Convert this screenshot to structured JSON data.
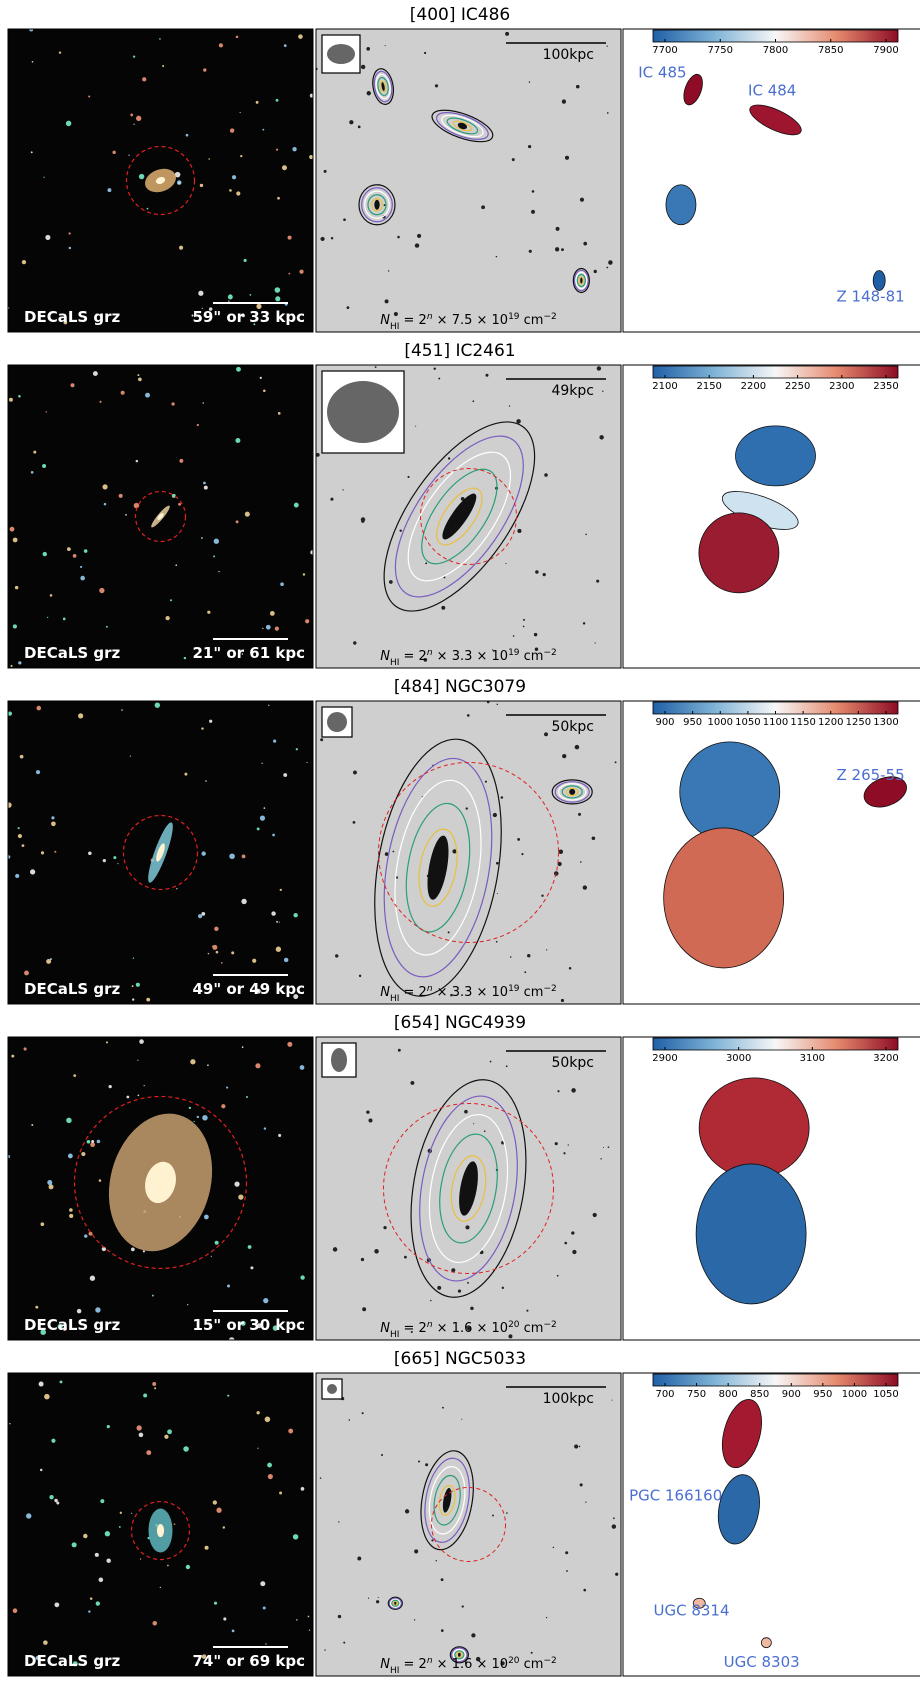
{
  "rows": [
    {
      "title": "[400] IC486",
      "optical": {
        "survey": "DECaLS grz",
        "scale": "59\" or 33 kpc"
      },
      "hi": {
        "scale_bar": "100kpc",
        "nhi": {
          "symbol": "N",
          "symbol_sub": "HI",
          "base": " = 2",
          "base_exp": "n",
          "factor": " × 7.5 × 10",
          "factor_exp": "19",
          "unit": " cm",
          "unit_exp": "−2"
        }
      },
      "velocity": {
        "colorbar_ticks": [
          7700,
          7750,
          7800,
          7850,
          7900
        ],
        "labels": [
          "IC 485",
          "IC 484",
          "Z 148-81"
        ]
      }
    },
    {
      "title": "[451] IC2461",
      "optical": {
        "survey": "DECaLS grz",
        "scale": "21\" or 61 kpc"
      },
      "hi": {
        "scale_bar": "49kpc",
        "nhi": {
          "symbol": "N",
          "symbol_sub": "HI",
          "base": " = 2",
          "base_exp": "n",
          "factor": " × 3.3 × 10",
          "factor_exp": "19",
          "unit": " cm",
          "unit_exp": "−2"
        }
      },
      "velocity": {
        "colorbar_ticks": [
          2100,
          2150,
          2200,
          2250,
          2300,
          2350
        ],
        "labels": []
      }
    },
    {
      "title": "[484] NGC3079",
      "optical": {
        "survey": "DECaLS grz",
        "scale": "49\" or 49 kpc"
      },
      "hi": {
        "scale_bar": "50kpc",
        "nhi": {
          "symbol": "N",
          "symbol_sub": "HI",
          "base": " = 2",
          "base_exp": "n",
          "factor": " × 3.3 × 10",
          "factor_exp": "19",
          "unit": " cm",
          "unit_exp": "−2"
        }
      },
      "velocity": {
        "colorbar_ticks": [
          900,
          950,
          1000,
          1050,
          1100,
          1150,
          1200,
          1250,
          1300
        ],
        "labels": [
          "Z 265-55"
        ]
      }
    },
    {
      "title": "[654] NGC4939",
      "optical": {
        "survey": "DECaLS grz",
        "scale": "15\" or 30 kpc"
      },
      "hi": {
        "scale_bar": "50kpc",
        "nhi": {
          "symbol": "N",
          "symbol_sub": "HI",
          "base": " = 2",
          "base_exp": "n",
          "factor": " × 1.6 × 10",
          "factor_exp": "20",
          "unit": " cm",
          "unit_exp": "−2"
        }
      },
      "velocity": {
        "colorbar_ticks": [
          2900,
          3000,
          3100,
          3200
        ],
        "labels": []
      }
    },
    {
      "title": "[665] NGC5033",
      "optical": {
        "survey": "DECaLS grz",
        "scale": "74\" or 69 kpc"
      },
      "hi": {
        "scale_bar": "100kpc",
        "nhi": {
          "symbol": "N",
          "symbol_sub": "HI",
          "base": " = 2",
          "base_exp": "n",
          "factor": " × 1.6 × 10",
          "factor_exp": "20",
          "unit": " cm",
          "unit_exp": "−2"
        }
      },
      "velocity": {
        "colorbar_ticks": [
          700,
          750,
          800,
          850,
          900,
          950,
          1000,
          1050
        ],
        "labels": [
          "PGC 166160",
          "UGC 8314",
          "UGC 8303"
        ]
      }
    }
  ]
}
